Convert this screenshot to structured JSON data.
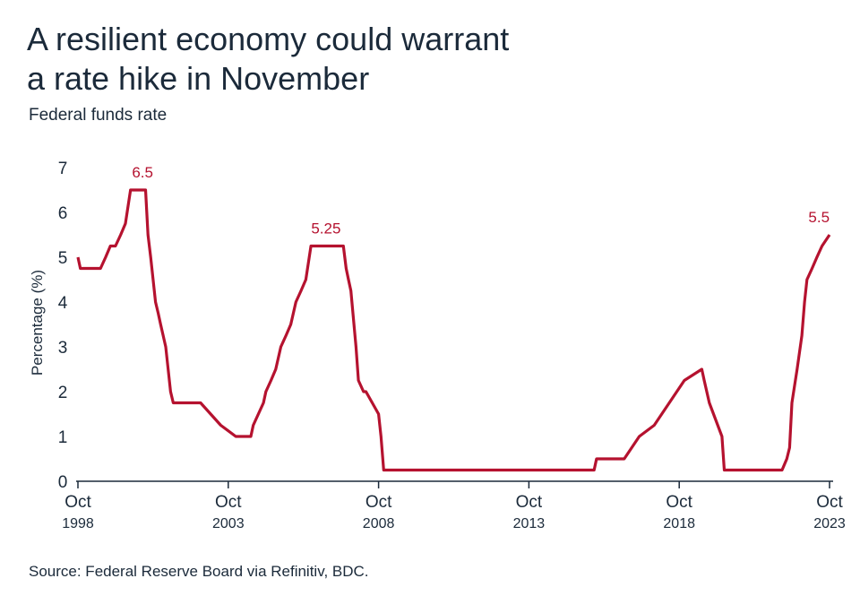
{
  "header": {
    "title_line1": "A resilient economy could warrant",
    "title_line2": "a rate hike in November",
    "subtitle": "Federal funds rate"
  },
  "footer": {
    "source": "Source: Federal Reserve Board via Refinitiv, BDC."
  },
  "colors": {
    "line": "#b5122f",
    "axis": "#1b2a3a",
    "text": "#1b2a3a"
  },
  "chart_data": {
    "type": "line",
    "title": "A resilient economy could warrant a rate hike in November",
    "subtitle": "Federal funds rate",
    "xlabel": "",
    "ylabel": "Percentage (%)",
    "ylim": [
      0,
      7
    ],
    "xlim": [
      1998.75,
      2023.75
    ],
    "yticks": [
      0,
      1,
      2,
      3,
      4,
      5,
      6,
      7
    ],
    "xticks": [
      {
        "month": "Oct",
        "year": "1998",
        "x": 1998.75
      },
      {
        "month": "Oct",
        "year": "2003",
        "x": 2003.75
      },
      {
        "month": "Oct",
        "year": "2008",
        "x": 2008.75
      },
      {
        "month": "Oct",
        "year": "2013",
        "x": 2013.75
      },
      {
        "month": "Oct",
        "year": "2018",
        "x": 2018.75
      },
      {
        "month": "Oct",
        "year": "2023",
        "x": 2023.75
      }
    ],
    "grid": false,
    "annotations": [
      {
        "text": "6.5",
        "x": 2000.9,
        "y": 6.5
      },
      {
        "text": "5.25",
        "x": 2007.0,
        "y": 5.25
      },
      {
        "text": "5.5",
        "x": 2023.4,
        "y": 5.5
      }
    ],
    "series": [
      {
        "x": [
          1998.75,
          1998.83,
          1998.92,
          1999.5,
          1999.67,
          1999.83,
          2000.0,
          2000.17,
          2000.33,
          2000.5,
          2001.0,
          2001.08,
          2001.17,
          2001.25,
          2001.33,
          2001.42,
          2001.5,
          2001.67,
          2001.75,
          2001.83,
          2001.92,
          2002.83,
          2003.5,
          2004.0,
          2004.5,
          2004.58,
          2004.75,
          2004.92,
          2005.0,
          2005.17,
          2005.33,
          2005.5,
          2005.67,
          2005.83,
          2006.0,
          2006.17,
          2006.33,
          2006.5,
          2007.58,
          2007.67,
          2007.75,
          2007.83,
          2008.0,
          2008.08,
          2008.25,
          2008.33,
          2008.75,
          2008.83,
          2008.92,
          2015.92,
          2016.0,
          2016.92,
          2017.17,
          2017.42,
          2017.92,
          2018.17,
          2018.42,
          2018.67,
          2018.92,
          2019.5,
          2019.58,
          2019.75,
          2020.17,
          2020.25,
          2022.17,
          2022.33,
          2022.42,
          2022.5,
          2022.67,
          2022.83,
          2022.92,
          2023.0,
          2023.17,
          2023.33,
          2023.5,
          2023.75
        ],
        "y": [
          5.0,
          4.75,
          4.75,
          4.75,
          5.0,
          5.25,
          5.25,
          5.5,
          5.75,
          6.5,
          6.5,
          5.5,
          5.0,
          4.5,
          4.0,
          3.75,
          3.5,
          3.0,
          2.5,
          2.0,
          1.75,
          1.75,
          1.25,
          1.0,
          1.0,
          1.25,
          1.5,
          1.75,
          2.0,
          2.25,
          2.5,
          3.0,
          3.25,
          3.5,
          4.0,
          4.25,
          4.5,
          5.25,
          5.25,
          4.75,
          4.5,
          4.25,
          3.0,
          2.25,
          2.0,
          2.0,
          1.5,
          1.0,
          0.25,
          0.25,
          0.5,
          0.5,
          0.75,
          1.0,
          1.25,
          1.5,
          1.75,
          2.0,
          2.25,
          2.5,
          2.25,
          1.75,
          1.0,
          0.25,
          0.25,
          0.5,
          0.75,
          1.75,
          2.5,
          3.25,
          4.0,
          4.5,
          4.75,
          5.0,
          5.25,
          5.5
        ]
      }
    ]
  }
}
